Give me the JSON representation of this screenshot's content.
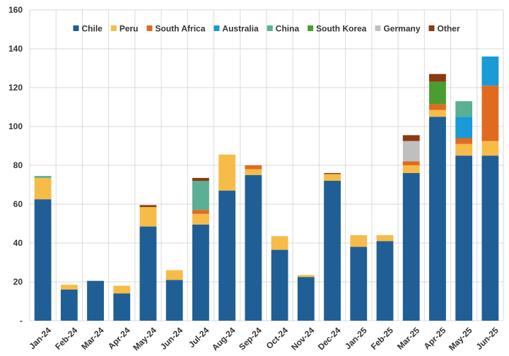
{
  "chart_data": {
    "type": "bar",
    "stacked": true,
    "title": "",
    "xlabel": "",
    "ylabel": "",
    "ylim": [
      0,
      160
    ],
    "yticks": [
      0,
      20,
      40,
      60,
      80,
      100,
      120,
      140,
      160
    ],
    "zero_tick_label": "-",
    "grid": true,
    "legend_position": "top",
    "categories": [
      "Jan-24",
      "Feb-24",
      "Mar-24",
      "Apr-24",
      "May-24",
      "Jun-24",
      "Jul-24",
      "Aug-24",
      "Sep-24",
      "Oct-24",
      "Nov-24",
      "Dec-24",
      "Jan-25",
      "Feb-25",
      "Mar-25",
      "Apr-25",
      "May-25",
      "Jun-25"
    ],
    "series": [
      {
        "name": "Chile",
        "color": "#1f5f96",
        "values": [
          62.5,
          16,
          20.5,
          14,
          48.5,
          21,
          49.5,
          67,
          75,
          36.5,
          22.5,
          72,
          38,
          41,
          76,
          105,
          85,
          85
        ]
      },
      {
        "name": "Peru",
        "color": "#f7bb48",
        "values": [
          11,
          2.5,
          0,
          4,
          10,
          5,
          5.5,
          18.5,
          3,
          7,
          1,
          3.5,
          6,
          3,
          4,
          3.5,
          6,
          7.5
        ]
      },
      {
        "name": "South Africa",
        "color": "#e06b1f",
        "values": [
          0,
          0,
          0,
          0,
          0,
          0,
          2,
          0,
          2,
          0,
          0,
          0,
          0,
          0,
          2,
          3,
          3,
          28.5
        ]
      },
      {
        "name": "Australia",
        "color": "#1a9ad6",
        "values": [
          0,
          0,
          0,
          0,
          0,
          0,
          0,
          0,
          0,
          0,
          0,
          0,
          0,
          0,
          0,
          0,
          11,
          15
        ]
      },
      {
        "name": "China",
        "color": "#5aaf94",
        "values": [
          1,
          0,
          0,
          0,
          0,
          0,
          15,
          0,
          0,
          0,
          0,
          0,
          0,
          0,
          0,
          0,
          8,
          0
        ]
      },
      {
        "name": "South Korea",
        "color": "#4a9e2f",
        "values": [
          0,
          0,
          0,
          0,
          0,
          0,
          0,
          0,
          0,
          0,
          0,
          0,
          0,
          0,
          0,
          11.5,
          0,
          0
        ]
      },
      {
        "name": "Germany",
        "color": "#bfbfbf",
        "values": [
          0,
          0,
          0,
          0,
          0,
          0,
          0,
          0,
          0,
          0,
          0,
          0,
          0,
          0,
          10.5,
          0,
          0,
          0
        ]
      },
      {
        "name": "Other",
        "color": "#8b3a10",
        "values": [
          0,
          0,
          0,
          0,
          1,
          0,
          1.5,
          0,
          0,
          0,
          0,
          0.5,
          0,
          0,
          3,
          4,
          0,
          0
        ]
      }
    ]
  }
}
